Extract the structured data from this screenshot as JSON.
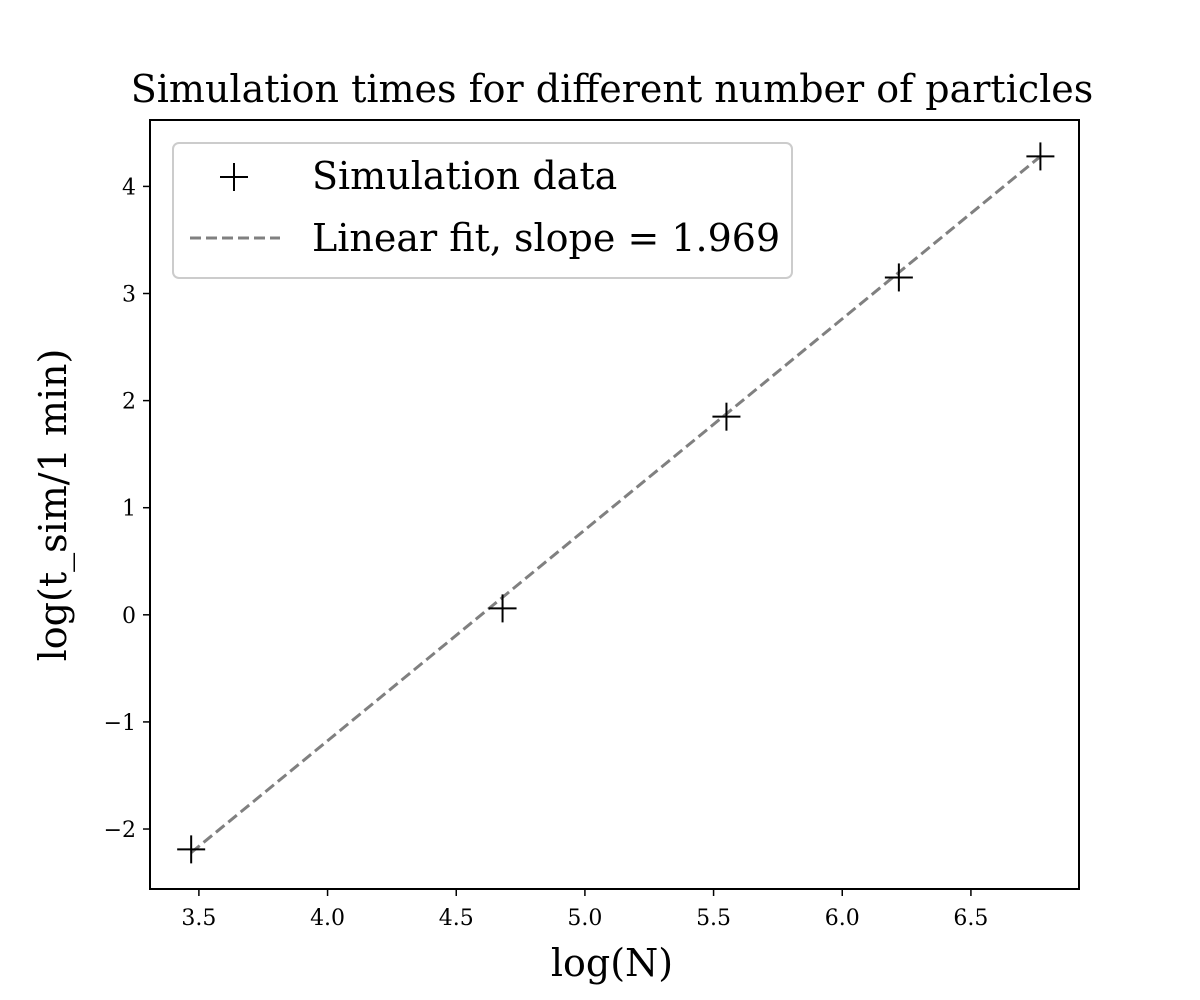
{
  "chart_data": {
    "type": "scatter",
    "title": "Simulation times for different number of particles",
    "xlabel": "log(N)",
    "ylabel": "log(t_sim/1 min)",
    "xlim": [
      3.31,
      6.92
    ],
    "ylim": [
      -2.56,
      4.62
    ],
    "xticks": [
      3.5,
      4.0,
      4.5,
      5.0,
      5.5,
      6.0,
      6.5
    ],
    "xtick_labels": [
      "3.5",
      "4.0",
      "4.5",
      "5.0",
      "5.5",
      "6.0",
      "6.5"
    ],
    "yticks": [
      -2,
      -1,
      0,
      1,
      2,
      3,
      4
    ],
    "ytick_labels": [
      "−2",
      "−1",
      "0",
      "1",
      "2",
      "3",
      "4"
    ],
    "grid": false,
    "legend_position": "top-left",
    "series": [
      {
        "name": "Simulation data",
        "kind": "scatter",
        "marker": "plus",
        "color": "#000000",
        "x": [
          3.47,
          4.68,
          5.55,
          6.22,
          6.77
        ],
        "y": [
          -2.19,
          0.06,
          1.85,
          3.15,
          4.28
        ]
      },
      {
        "name": "Linear fit, slope = 1.969",
        "kind": "line",
        "style": "dashed",
        "color": "#808080",
        "x": [
          3.47,
          6.77
        ],
        "y": [
          -2.22,
          4.28
        ]
      }
    ]
  }
}
